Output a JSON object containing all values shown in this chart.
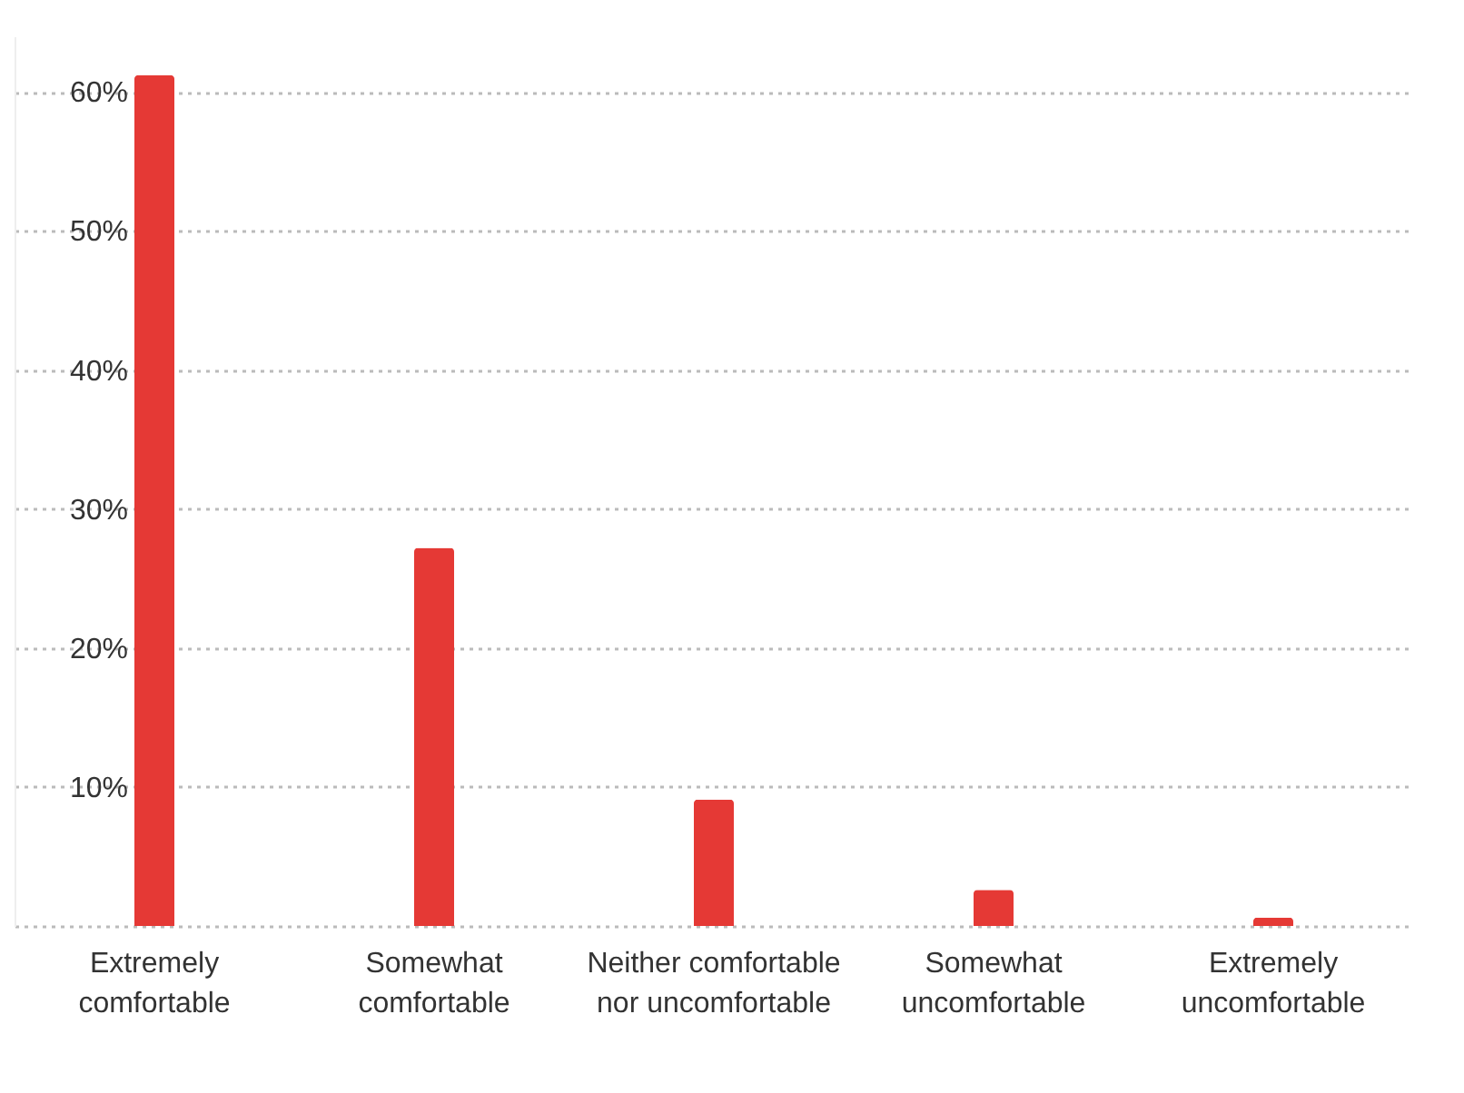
{
  "chart_data": {
    "type": "bar",
    "categories": [
      "Extremely comfortable",
      "Somewhat comfortable",
      "Neither comfortable nor uncomfortable",
      "Somewhat uncomfortable",
      "Extremely uncomfortable"
    ],
    "values": [
      61.2,
      27.2,
      9.1,
      2.6,
      0.6
    ],
    "color": "#e53935",
    "ylim": [
      0,
      64
    ],
    "yticks": [
      {
        "value": 0,
        "label": null
      },
      {
        "value": 10,
        "label": "10%"
      },
      {
        "value": 20,
        "label": "20%"
      },
      {
        "value": 30,
        "label": "30%"
      },
      {
        "value": 40,
        "label": "40%"
      },
      {
        "value": 50,
        "label": "50%"
      },
      {
        "value": 60,
        "label": "60%"
      }
    ],
    "grid": "y"
  }
}
